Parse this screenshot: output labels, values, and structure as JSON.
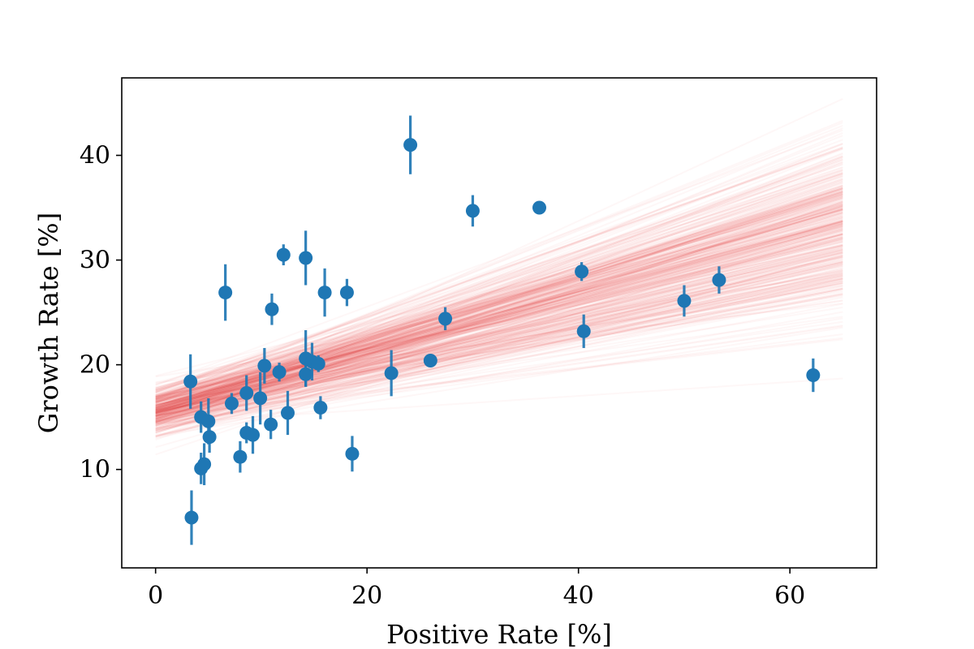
{
  "chart_data": {
    "type": "scatter",
    "xlabel": "Positive Rate [%]",
    "ylabel": "Growth Rate [%]",
    "xlim": [
      -3.2,
      68.2
    ],
    "ylim": [
      0.6,
      47.4
    ],
    "xticks": [
      0,
      20,
      40,
      60
    ],
    "yticks": [
      10,
      20,
      30,
      40
    ],
    "grid": false,
    "colors": {
      "points": "#1f77b4",
      "fit_lines": "#d62728"
    },
    "series": [
      {
        "points": [
          {
            "x": 3.3,
            "y": 18.4,
            "err": 2.6
          },
          {
            "x": 3.4,
            "y": 5.4,
            "err": 2.6
          },
          {
            "x": 4.3,
            "y": 15.0,
            "err": 1.5
          },
          {
            "x": 4.3,
            "y": 10.1,
            "err": 1.5
          },
          {
            "x": 4.6,
            "y": 10.5,
            "err": 2.0
          },
          {
            "x": 5.0,
            "y": 14.6,
            "err": 2.2
          },
          {
            "x": 5.1,
            "y": 13.1,
            "err": 1.5
          },
          {
            "x": 6.6,
            "y": 26.9,
            "err": 2.7
          },
          {
            "x": 7.2,
            "y": 16.3,
            "err": 1.0
          },
          {
            "x": 8.0,
            "y": 11.2,
            "err": 1.5
          },
          {
            "x": 8.6,
            "y": 17.3,
            "err": 1.7
          },
          {
            "x": 8.6,
            "y": 13.5,
            "err": 1.0
          },
          {
            "x": 9.2,
            "y": 13.3,
            "err": 1.8
          },
          {
            "x": 9.9,
            "y": 16.8,
            "err": 2.5
          },
          {
            "x": 10.3,
            "y": 19.9,
            "err": 1.7
          },
          {
            "x": 10.9,
            "y": 14.3,
            "err": 1.4
          },
          {
            "x": 11.0,
            "y": 25.3,
            "err": 1.5
          },
          {
            "x": 11.7,
            "y": 19.3,
            "err": 0.9
          },
          {
            "x": 12.1,
            "y": 30.5,
            "err": 1.0
          },
          {
            "x": 12.5,
            "y": 15.4,
            "err": 2.1
          },
          {
            "x": 14.2,
            "y": 30.2,
            "err": 2.6
          },
          {
            "x": 14.2,
            "y": 20.6,
            "err": 2.7
          },
          {
            "x": 14.2,
            "y": 19.1,
            "err": 1.2
          },
          {
            "x": 14.8,
            "y": 20.3,
            "err": 1.8
          },
          {
            "x": 15.4,
            "y": 20.1,
            "err": 0.8
          },
          {
            "x": 15.6,
            "y": 15.9,
            "err": 1.1
          },
          {
            "x": 16.0,
            "y": 26.9,
            "err": 2.3
          },
          {
            "x": 18.1,
            "y": 26.9,
            "err": 1.3
          },
          {
            "x": 18.6,
            "y": 11.5,
            "err": 1.7
          },
          {
            "x": 22.3,
            "y": 19.2,
            "err": 2.2
          },
          {
            "x": 24.1,
            "y": 41.0,
            "err": 2.8
          },
          {
            "x": 26.0,
            "y": 20.4,
            "err": 0.5
          },
          {
            "x": 27.4,
            "y": 24.4,
            "err": 1.1
          },
          {
            "x": 30.0,
            "y": 34.7,
            "err": 1.5
          },
          {
            "x": 36.3,
            "y": 35.0,
            "err": 0.4
          },
          {
            "x": 40.3,
            "y": 28.9,
            "err": 0.9
          },
          {
            "x": 40.5,
            "y": 23.2,
            "err": 1.6
          },
          {
            "x": 50.0,
            "y": 26.1,
            "err": 1.5
          },
          {
            "x": 53.3,
            "y": 28.1,
            "err": 1.3
          },
          {
            "x": 62.2,
            "y": 19.0,
            "err": 1.6
          }
        ]
      }
    ],
    "fit_lines": {
      "x_range": [
        0,
        65
      ],
      "count": 400,
      "intercept_mean": 15.6,
      "intercept_sd": 1.2,
      "slope_mean": 0.27,
      "slope_sd": 0.06
    }
  }
}
